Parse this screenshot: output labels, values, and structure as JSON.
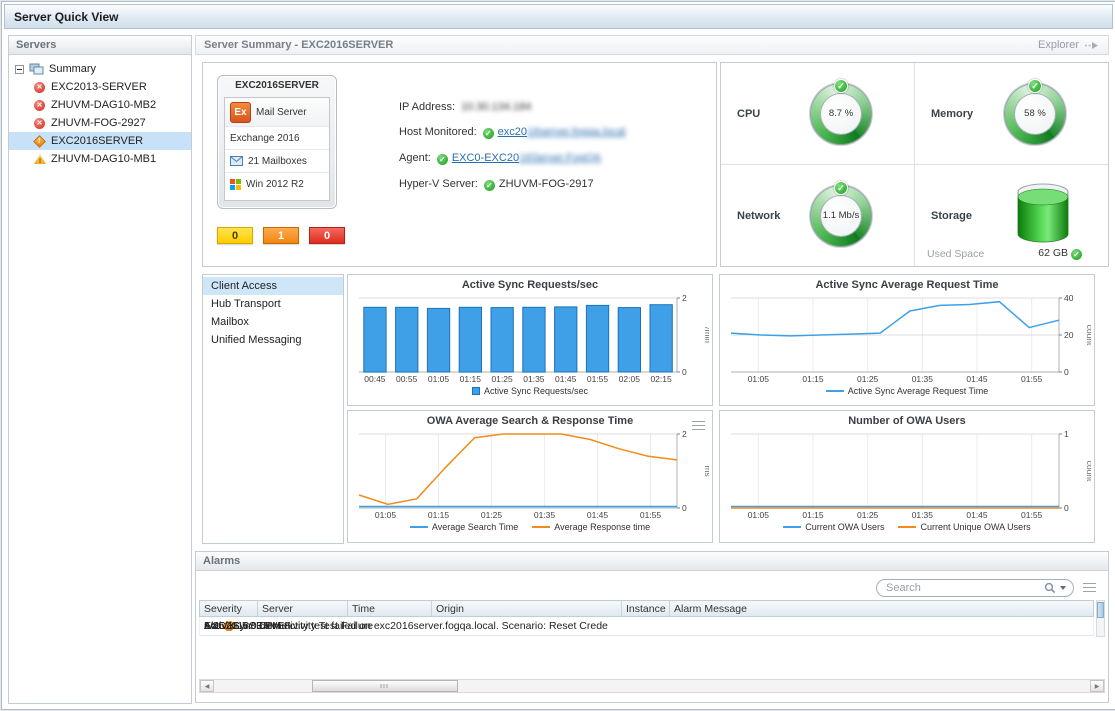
{
  "icons": {
    "ok": "✓",
    "critical": "✕",
    "warn": "!",
    "scroll_left": "◀",
    "scroll_right": "▶"
  },
  "window": {
    "title": "Server Quick View"
  },
  "sidebar": {
    "title": "Servers",
    "root_label": "Summary",
    "items": [
      {
        "label": "EXC2013-SERVER",
        "status": "critical",
        "selected": false
      },
      {
        "label": "ZHUVM-DAG10-MB2",
        "status": "critical",
        "selected": false
      },
      {
        "label": "ZHUVM-FOG-2927",
        "status": "critical",
        "selected": false
      },
      {
        "label": "EXC2016SERVER",
        "status": "warning",
        "selected": true
      },
      {
        "label": "ZHUVM-DAG10-MB1",
        "status": "caution",
        "selected": false
      }
    ]
  },
  "summary": {
    "title": "Server Summary - EXC2016SERVER",
    "explorer_label": "Explorer",
    "server_card": {
      "name": "EXC2016SERVER",
      "logo_text": "Ex",
      "role": "Mail Server",
      "version": "Exchange 2016",
      "mailboxes": "21 Mailboxes",
      "os": "Win 2012 R2",
      "counts": [
        {
          "severity": "warning",
          "value": "0"
        },
        {
          "severity": "error",
          "value": "1"
        },
        {
          "severity": "fatal",
          "value": "0"
        }
      ]
    },
    "details": [
      {
        "label": "IP Address:",
        "redacted": "10.30.134.184"
      },
      {
        "label": "Host Monitored:",
        "check": true,
        "link": true,
        "value": "exc20",
        "redacted": "16server.fogqa.local"
      },
      {
        "label": "Agent:",
        "check": true,
        "link": true,
        "value": "EXC0-EXC20",
        "redacted": "16Server.FogQA"
      },
      {
        "label": "Hyper-V Server:",
        "check": true,
        "value": "ZHUVM-FOG-2917"
      }
    ],
    "gauges": [
      {
        "label": "CPU",
        "value": "8.7 %"
      },
      {
        "label": "Memory",
        "value": "58 %"
      },
      {
        "label": "Network",
        "value": "1.1 Mb/s"
      },
      {
        "label": "Storage",
        "used_label": "Used Space",
        "value": "62 GB"
      }
    ]
  },
  "roles_menu": {
    "items": [
      "Client Access",
      "Hub Transport",
      "Mailbox",
      "Unified Messaging"
    ],
    "selected_index": 0
  },
  "chart_data": [
    {
      "type": "bar",
      "title": "Active Sync Requests/sec",
      "categories": [
        "00:45",
        "00:55",
        "01:05",
        "01:15",
        "01:25",
        "01:35",
        "01:45",
        "01:55",
        "02:05",
        "02:15"
      ],
      "values": [
        1.75,
        1.75,
        1.72,
        1.75,
        1.74,
        1.75,
        1.76,
        1.8,
        1.74,
        1.82
      ],
      "ylim": [
        0,
        2
      ],
      "yticks": [
        0,
        2
      ],
      "ylabel": "/min",
      "color": "#3fa0e8",
      "legend": [
        {
          "label": "Active Sync Requests/sec",
          "color": "#3fa0e8",
          "marker": "square"
        }
      ]
    },
    {
      "type": "line",
      "title": "Active Sync Average Request Time",
      "x_ticks": [
        "01:05",
        "01:15",
        "01:25",
        "01:35",
        "01:45",
        "01:55"
      ],
      "series": [
        {
          "name": "Active Sync Average Request Time",
          "color": "#3fa0e8",
          "values": [
            21,
            20,
            19.5,
            20,
            20.5,
            21,
            33,
            36,
            36.5,
            38,
            24,
            28
          ]
        }
      ],
      "ylim": [
        0,
        40
      ],
      "yticks": [
        0,
        20,
        40
      ],
      "ylabel": "count",
      "legend": [
        {
          "label": "Active Sync Average Request Time",
          "color": "#3fa0e8",
          "marker": "line"
        }
      ]
    },
    {
      "type": "line",
      "title": "OWA Average Search & Response Time",
      "x_ticks": [
        "01:05",
        "01:15",
        "01:25",
        "01:35",
        "01:45",
        "01:55"
      ],
      "series": [
        {
          "name": "Average Search Time",
          "color": "#3fa0e8",
          "values": [
            0.04,
            0.04,
            0.04,
            0.04,
            0.04,
            0.04,
            0.04,
            0.04,
            0.04,
            0.04,
            0.04,
            0.04
          ]
        },
        {
          "name": "Average Response time",
          "color": "#f08c1e",
          "values": [
            0.35,
            0.1,
            0.25,
            1.1,
            1.9,
            2.0,
            2.0,
            2.0,
            1.85,
            1.6,
            1.4,
            1.3
          ]
        }
      ],
      "ylim": [
        0,
        2
      ],
      "yticks": [
        0,
        2
      ],
      "ylabel": "ms",
      "legend": [
        {
          "label": "Average Search Time",
          "color": "#3fa0e8",
          "marker": "line"
        },
        {
          "label": "Average Response time",
          "color": "#f08c1e",
          "marker": "line"
        }
      ]
    },
    {
      "type": "line",
      "title": "Number of OWA Users",
      "x_ticks": [
        "01:05",
        "01:15",
        "01:25",
        "01:35",
        "01:45",
        "01:55"
      ],
      "series": [
        {
          "name": "Current OWA Users",
          "color": "#3fa0e8",
          "values": [
            0.02,
            0.02,
            0.02,
            0.02,
            0.02,
            0.02,
            0.02,
            0.02,
            0.02,
            0.02,
            0.02,
            0.02
          ]
        },
        {
          "name": "Current Unique OWA Users",
          "color": "#f08c1e",
          "values": [
            0,
            0,
            0,
            0,
            0,
            0,
            0,
            0,
            0,
            0,
            0,
            0
          ]
        }
      ],
      "ylim": [
        0,
        1
      ],
      "yticks": [
        0,
        1
      ],
      "ylabel": "count",
      "legend": [
        {
          "label": "Current OWA Users",
          "color": "#3fa0e8",
          "marker": "line"
        },
        {
          "label": "Current Unique OWA Users",
          "color": "#f08c1e",
          "marker": "line"
        }
      ]
    }
  ],
  "alarms": {
    "title": "Alarms",
    "search_placeholder": "Search",
    "columns": [
      "Severity",
      "Server",
      "Time",
      "Origin",
      "Instance",
      "Alarm Message"
    ],
    "rows": [
      {
        "severity": "warning",
        "server": "EXC2016SERVER",
        "time": "1/25/16 5:03 PM",
        "origin": "ActiveSync Connectivity Test Failure",
        "instance": "n/a",
        "message": "ActiveSync connetivity test failed on exc2016server.fogqa.local. Scenario: Reset Crede"
      }
    ]
  }
}
